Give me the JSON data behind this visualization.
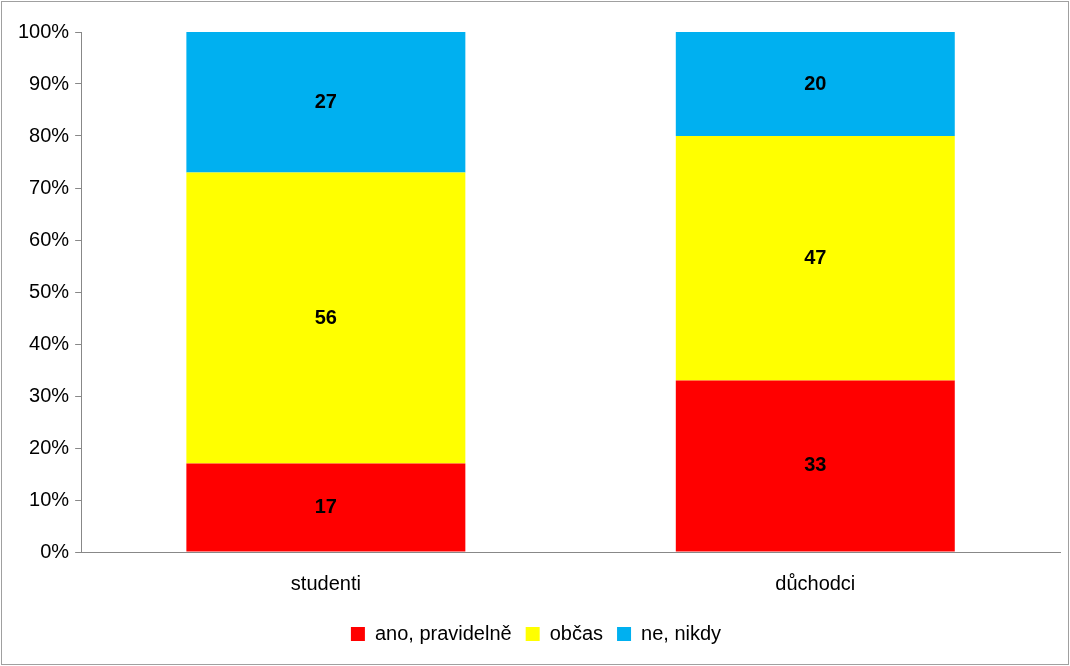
{
  "chart_data": {
    "type": "bar",
    "stacked": true,
    "categories": [
      "studenti",
      "důchodci"
    ],
    "series": [
      {
        "name": "ano, pravidelně",
        "color": "#ff0000",
        "values": [
          17,
          33
        ]
      },
      {
        "name": "občas",
        "color": "#ffff00",
        "values": [
          56,
          47
        ]
      },
      {
        "name": "ne, nikdy",
        "color": "#00b0f0",
        "values": [
          27,
          20
        ]
      }
    ],
    "ylim": [
      0,
      100
    ],
    "yticks": [
      {
        "value": 0,
        "label": "0%"
      },
      {
        "value": 10,
        "label": "10%"
      },
      {
        "value": 20,
        "label": "20%"
      },
      {
        "value": 30,
        "label": "30%"
      },
      {
        "value": 40,
        "label": "40%"
      },
      {
        "value": 50,
        "label": "50%"
      },
      {
        "value": 60,
        "label": "60%"
      },
      {
        "value": 70,
        "label": "70%"
      },
      {
        "value": 80,
        "label": "80%"
      },
      {
        "value": 90,
        "label": "90%"
      },
      {
        "value": 100,
        "label": "100%"
      }
    ],
    "grid": false,
    "legend": "bottom",
    "data_labels": true
  }
}
